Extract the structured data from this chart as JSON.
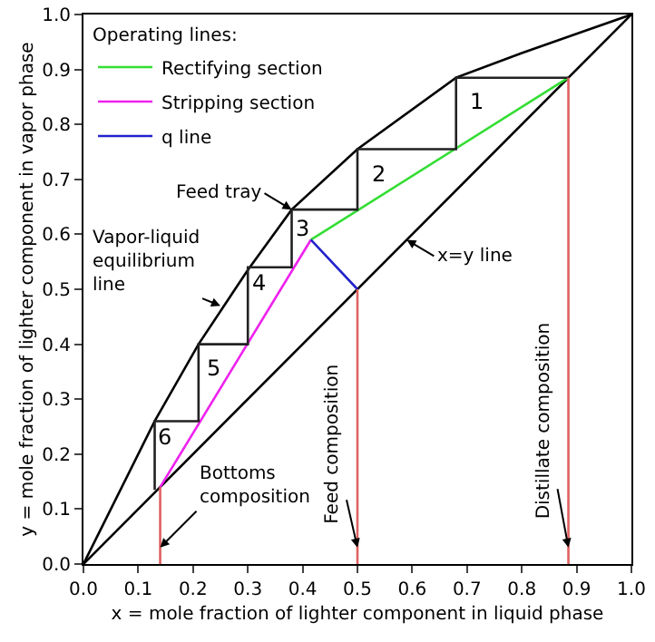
{
  "chart_data": {
    "type": "line",
    "xlabel": "x = mole fraction of lighter component in liquid phase",
    "ylabel": "y = mole fraction of lighter component in vapor phase",
    "legend_title": "Operating lines:",
    "legend": "top left",
    "grid": false,
    "marker": "none",
    "xlim": [
      0,
      1
    ],
    "ylim": [
      0,
      1
    ],
    "xticks": [
      {
        "value": 0,
        "label": "0.0"
      },
      0.1,
      0.2,
      0.3,
      0.4,
      0.5,
      0.6,
      0.7,
      0.8,
      0.9,
      {
        "value": 1,
        "label": "1.0"
      }
    ],
    "yticks": [
      {
        "value": 0,
        "label": "0.0"
      },
      0.1,
      0.2,
      0.3,
      0.4,
      0.5,
      0.6,
      0.7,
      0.8,
      0.9,
      {
        "value": 1,
        "label": "1.0"
      }
    ],
    "series": [
      {
        "color": "#000000",
        "x": [
          0,
          0.13,
          0.21,
          0.3,
          0.38,
          0.5,
          0.68,
          0.8,
          0.9,
          1
        ],
        "values": [
          0,
          0.26,
          0.4,
          0.535,
          0.645,
          0.755,
          0.885,
          0.93,
          0.965,
          1
        ]
      },
      {
        "color": "#000000",
        "x": [
          0,
          1
        ],
        "values": [
          0,
          1
        ]
      },
      {
        "name": "Rectifying section",
        "color": "#33dd33",
        "x": [
          0.885,
          0.415
        ],
        "values": [
          0.885,
          0.59
        ]
      },
      {
        "name": "Stripping section",
        "color": "#ee22ee",
        "x": [
          0.14,
          0.415
        ],
        "values": [
          0.14,
          0.59
        ]
      },
      {
        "name": "q line",
        "color": "#2222cc",
        "x": [
          0.5,
          0.415
        ],
        "values": [
          0.5,
          0.59
        ]
      },
      {
        "color": "#222222",
        "x": [
          0.885,
          0.68,
          0.68,
          0.5,
          0.5,
          0.38,
          0.38,
          0.3,
          0.3,
          0.21,
          0.21,
          0.13,
          0.13
        ],
        "values": [
          0.885,
          0.885,
          0.755,
          0.755,
          0.645,
          0.645,
          0.54,
          0.54,
          0.4,
          0.4,
          0.26,
          0.26,
          0.135
        ]
      },
      {
        "color": "#e06060",
        "x": [
          0.14,
          0.14
        ],
        "values": [
          0,
          0.14
        ]
      },
      {
        "color": "#e06060",
        "x": [
          0.5,
          0.5
        ],
        "values": [
          0,
          0.5
        ]
      },
      {
        "color": "#e06060",
        "x": [
          0.885,
          0.885
        ],
        "values": [
          0,
          0.885
        ]
      }
    ],
    "annotations": [
      {
        "text": "Feed tray",
        "x": 0.38,
        "y": 0.645
      },
      {
        "text": "Vapor-liquid\nequilibrium\nline",
        "x": 0.25,
        "y": 0.47
      },
      {
        "text": "x=y line",
        "x": 0.59,
        "y": 0.59
      },
      {
        "text": "Bottoms\ncomposition",
        "x": 0.14,
        "y": 0.03
      },
      {
        "text": "Feed composition",
        "x": 0.5,
        "y": 0.03
      },
      {
        "text": "Distillate composition",
        "x": 0.885,
        "y": 0.03
      },
      "1",
      "2",
      "3",
      "4",
      "5",
      "6"
    ]
  }
}
